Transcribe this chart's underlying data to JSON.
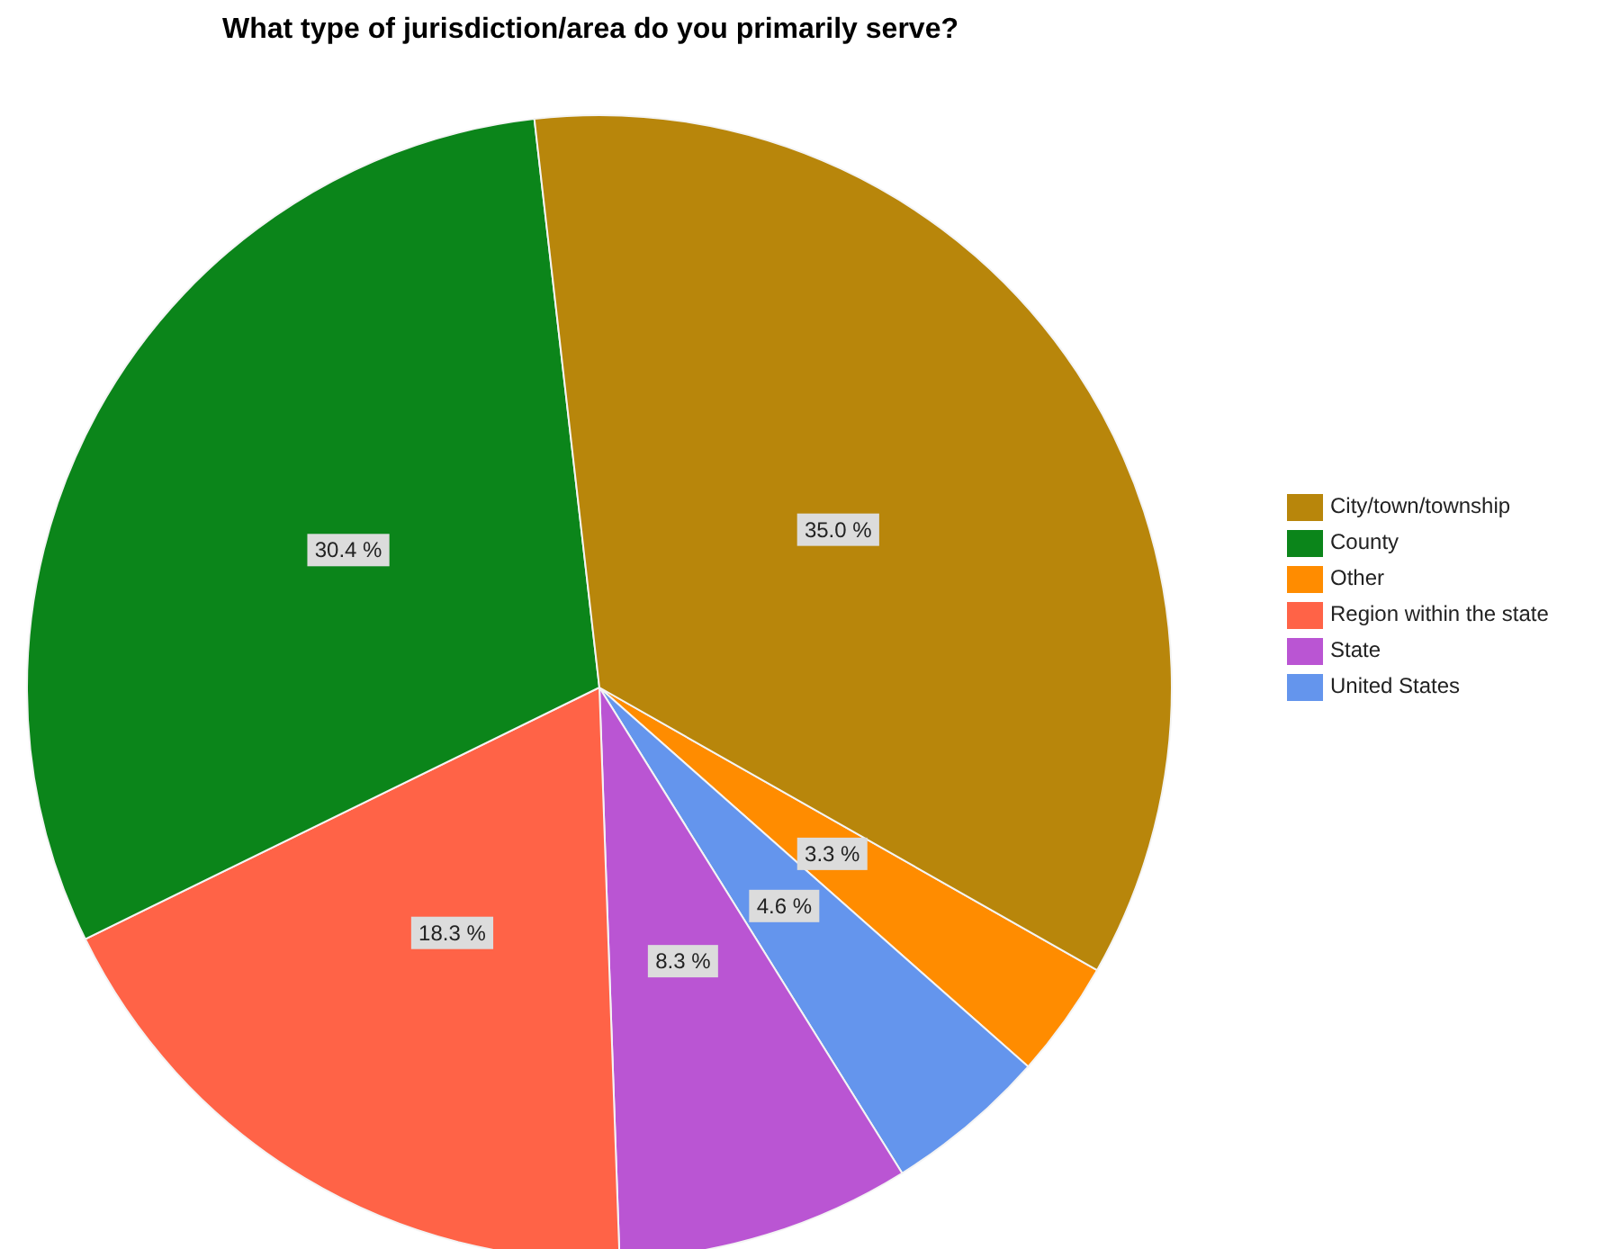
{
  "chart_data": {
    "type": "pie",
    "title": "What type of jurisdiction/area do you primarily serve?",
    "categories": [
      "Other",
      "United States",
      "State",
      "Region within the state",
      "County",
      "City/town/township"
    ],
    "values": [
      3.3,
      4.6,
      8.3,
      18.3,
      30.4,
      35.0
    ],
    "value_labels": [
      "3.3 %",
      "4.6 %",
      "8.3 %",
      "18.3 %",
      "30.4 %",
      "35.0 %"
    ],
    "colors": [
      "#ff8c00",
      "#6495ed",
      "#ba55d3",
      "#ff6347",
      "#0b851a",
      "#b8860b"
    ],
    "legend": "right"
  }
}
